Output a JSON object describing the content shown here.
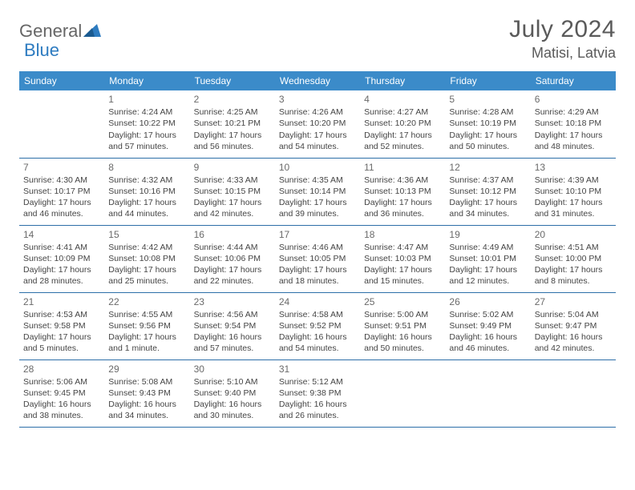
{
  "logo": {
    "part1": "General",
    "part2": "Blue"
  },
  "title": "July 2024",
  "location": "Matisi, Latvia",
  "colors": {
    "header_bg": "#3b8bc9",
    "header_text": "#ffffff",
    "cell_border": "#2d6fa8",
    "text": "#444444",
    "title_text": "#5a5a5a"
  },
  "daysOfWeek": [
    "Sunday",
    "Monday",
    "Tuesday",
    "Wednesday",
    "Thursday",
    "Friday",
    "Saturday"
  ],
  "weeks": [
    [
      null,
      {
        "n": "1",
        "sunrise": "Sunrise: 4:24 AM",
        "sunset": "Sunset: 10:22 PM",
        "daylight": "Daylight: 17 hours and 57 minutes."
      },
      {
        "n": "2",
        "sunrise": "Sunrise: 4:25 AM",
        "sunset": "Sunset: 10:21 PM",
        "daylight": "Daylight: 17 hours and 56 minutes."
      },
      {
        "n": "3",
        "sunrise": "Sunrise: 4:26 AM",
        "sunset": "Sunset: 10:20 PM",
        "daylight": "Daylight: 17 hours and 54 minutes."
      },
      {
        "n": "4",
        "sunrise": "Sunrise: 4:27 AM",
        "sunset": "Sunset: 10:20 PM",
        "daylight": "Daylight: 17 hours and 52 minutes."
      },
      {
        "n": "5",
        "sunrise": "Sunrise: 4:28 AM",
        "sunset": "Sunset: 10:19 PM",
        "daylight": "Daylight: 17 hours and 50 minutes."
      },
      {
        "n": "6",
        "sunrise": "Sunrise: 4:29 AM",
        "sunset": "Sunset: 10:18 PM",
        "daylight": "Daylight: 17 hours and 48 minutes."
      }
    ],
    [
      {
        "n": "7",
        "sunrise": "Sunrise: 4:30 AM",
        "sunset": "Sunset: 10:17 PM",
        "daylight": "Daylight: 17 hours and 46 minutes."
      },
      {
        "n": "8",
        "sunrise": "Sunrise: 4:32 AM",
        "sunset": "Sunset: 10:16 PM",
        "daylight": "Daylight: 17 hours and 44 minutes."
      },
      {
        "n": "9",
        "sunrise": "Sunrise: 4:33 AM",
        "sunset": "Sunset: 10:15 PM",
        "daylight": "Daylight: 17 hours and 42 minutes."
      },
      {
        "n": "10",
        "sunrise": "Sunrise: 4:35 AM",
        "sunset": "Sunset: 10:14 PM",
        "daylight": "Daylight: 17 hours and 39 minutes."
      },
      {
        "n": "11",
        "sunrise": "Sunrise: 4:36 AM",
        "sunset": "Sunset: 10:13 PM",
        "daylight": "Daylight: 17 hours and 36 minutes."
      },
      {
        "n": "12",
        "sunrise": "Sunrise: 4:37 AM",
        "sunset": "Sunset: 10:12 PM",
        "daylight": "Daylight: 17 hours and 34 minutes."
      },
      {
        "n": "13",
        "sunrise": "Sunrise: 4:39 AM",
        "sunset": "Sunset: 10:10 PM",
        "daylight": "Daylight: 17 hours and 31 minutes."
      }
    ],
    [
      {
        "n": "14",
        "sunrise": "Sunrise: 4:41 AM",
        "sunset": "Sunset: 10:09 PM",
        "daylight": "Daylight: 17 hours and 28 minutes."
      },
      {
        "n": "15",
        "sunrise": "Sunrise: 4:42 AM",
        "sunset": "Sunset: 10:08 PM",
        "daylight": "Daylight: 17 hours and 25 minutes."
      },
      {
        "n": "16",
        "sunrise": "Sunrise: 4:44 AM",
        "sunset": "Sunset: 10:06 PM",
        "daylight": "Daylight: 17 hours and 22 minutes."
      },
      {
        "n": "17",
        "sunrise": "Sunrise: 4:46 AM",
        "sunset": "Sunset: 10:05 PM",
        "daylight": "Daylight: 17 hours and 18 minutes."
      },
      {
        "n": "18",
        "sunrise": "Sunrise: 4:47 AM",
        "sunset": "Sunset: 10:03 PM",
        "daylight": "Daylight: 17 hours and 15 minutes."
      },
      {
        "n": "19",
        "sunrise": "Sunrise: 4:49 AM",
        "sunset": "Sunset: 10:01 PM",
        "daylight": "Daylight: 17 hours and 12 minutes."
      },
      {
        "n": "20",
        "sunrise": "Sunrise: 4:51 AM",
        "sunset": "Sunset: 10:00 PM",
        "daylight": "Daylight: 17 hours and 8 minutes."
      }
    ],
    [
      {
        "n": "21",
        "sunrise": "Sunrise: 4:53 AM",
        "sunset": "Sunset: 9:58 PM",
        "daylight": "Daylight: 17 hours and 5 minutes."
      },
      {
        "n": "22",
        "sunrise": "Sunrise: 4:55 AM",
        "sunset": "Sunset: 9:56 PM",
        "daylight": "Daylight: 17 hours and 1 minute."
      },
      {
        "n": "23",
        "sunrise": "Sunrise: 4:56 AM",
        "sunset": "Sunset: 9:54 PM",
        "daylight": "Daylight: 16 hours and 57 minutes."
      },
      {
        "n": "24",
        "sunrise": "Sunrise: 4:58 AM",
        "sunset": "Sunset: 9:52 PM",
        "daylight": "Daylight: 16 hours and 54 minutes."
      },
      {
        "n": "25",
        "sunrise": "Sunrise: 5:00 AM",
        "sunset": "Sunset: 9:51 PM",
        "daylight": "Daylight: 16 hours and 50 minutes."
      },
      {
        "n": "26",
        "sunrise": "Sunrise: 5:02 AM",
        "sunset": "Sunset: 9:49 PM",
        "daylight": "Daylight: 16 hours and 46 minutes."
      },
      {
        "n": "27",
        "sunrise": "Sunrise: 5:04 AM",
        "sunset": "Sunset: 9:47 PM",
        "daylight": "Daylight: 16 hours and 42 minutes."
      }
    ],
    [
      {
        "n": "28",
        "sunrise": "Sunrise: 5:06 AM",
        "sunset": "Sunset: 9:45 PM",
        "daylight": "Daylight: 16 hours and 38 minutes."
      },
      {
        "n": "29",
        "sunrise": "Sunrise: 5:08 AM",
        "sunset": "Sunset: 9:43 PM",
        "daylight": "Daylight: 16 hours and 34 minutes."
      },
      {
        "n": "30",
        "sunrise": "Sunrise: 5:10 AM",
        "sunset": "Sunset: 9:40 PM",
        "daylight": "Daylight: 16 hours and 30 minutes."
      },
      {
        "n": "31",
        "sunrise": "Sunrise: 5:12 AM",
        "sunset": "Sunset: 9:38 PM",
        "daylight": "Daylight: 16 hours and 26 minutes."
      },
      null,
      null,
      null
    ]
  ]
}
